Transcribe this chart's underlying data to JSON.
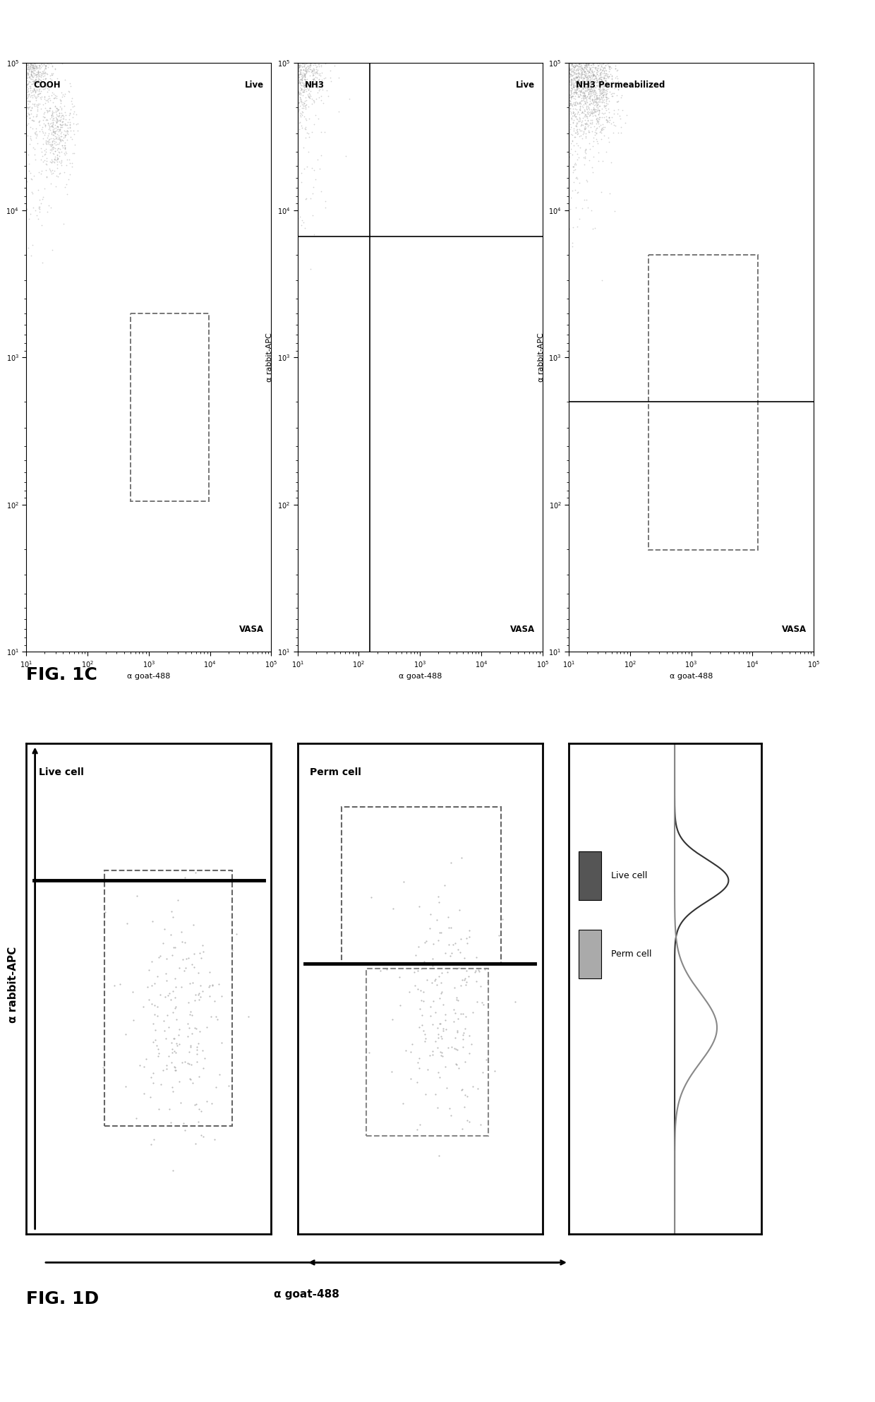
{
  "fig_width": 12.4,
  "fig_height": 19.86,
  "background_color": "#ffffff",
  "panel_C_title": "FIG. 1C",
  "panel_D_title": "FIG. 1D",
  "scatter_dot_color": "#999999",
  "scatter_dot_size": 1.5,
  "axis_label_x": "α goat-488",
  "axis_label_y": "α rabbit-APC",
  "sub1_top_left": "COOH",
  "sub1_top_right": "Live",
  "sub1_bottom_right": "VASA",
  "sub2_top_left": "NH3",
  "sub2_top_right": "Live",
  "sub2_bottom_right": "VASA",
  "sub3_top_left": "NH3 Permeabilized",
  "sub3_bottom_right": "VASA",
  "live_cell_label": "Live cell",
  "perm_cell_label": "Perm cell",
  "live_color": "#555555",
  "perm_color": "#aaaaaa",
  "gate_dash_color": "#777777",
  "gate_solid_color": "#000000"
}
